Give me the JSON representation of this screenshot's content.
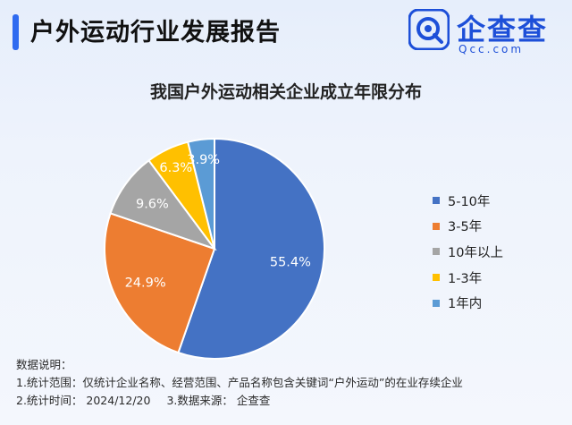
{
  "header": {
    "title": "户外运动行业发展报告"
  },
  "logo": {
    "name": "企查查",
    "url": "Qcc.com"
  },
  "chart_data": {
    "type": "pie",
    "title": "我国户外运动相关企业成立年限分布",
    "categories": [
      "5-10年",
      "3-5年",
      "10年以上",
      "1-3年",
      "1年内"
    ],
    "values": [
      55.4,
      24.9,
      9.6,
      6.3,
      3.9
    ],
    "labels": [
      "55.4%",
      "24.9%",
      "9.6%",
      "6.3%",
      "3.9%"
    ],
    "colors": [
      "#4472c4",
      "#ed7d31",
      "#a5a5a5",
      "#ffc000",
      "#5b9bd5"
    ],
    "legend_position": "right"
  },
  "notes": {
    "heading": "数据说明：",
    "line1": "1.统计范围：仅统计企业名称、经营范围、产品名称包含关键词“户外运动”的在业存续企业",
    "line2_a": "2.统计时间：  2024/12/20",
    "line2_b": "3.数据来源：  企查查"
  }
}
